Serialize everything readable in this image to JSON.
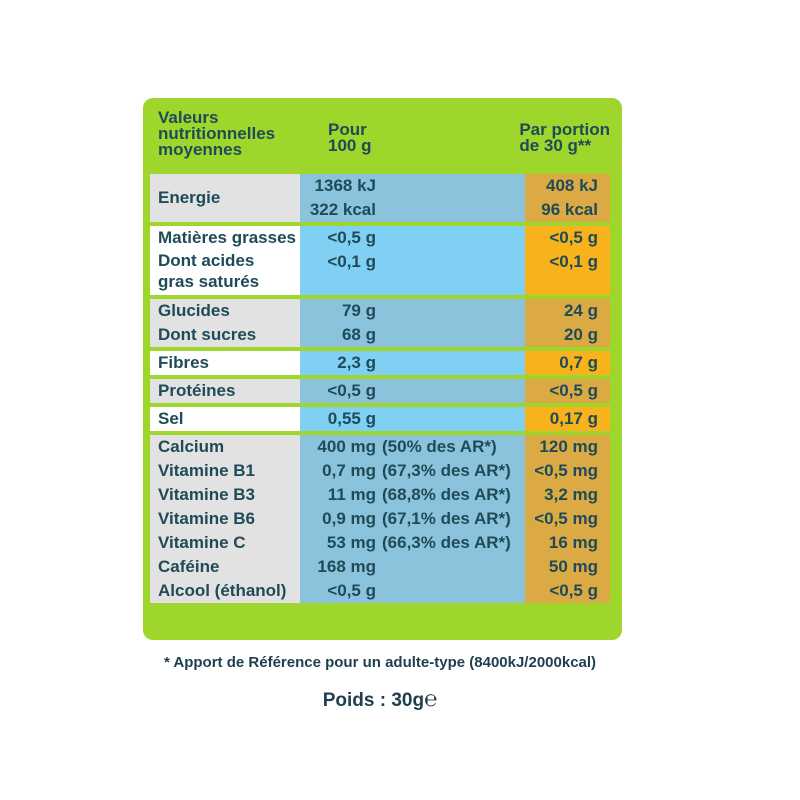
{
  "header": {
    "col_label": "Valeurs\nnutritionnelles\nmoyennes",
    "col_100g": "Pour\n100 g",
    "col_portion": "Par portion\nde 30 g**"
  },
  "groups": [
    {
      "label": "Energie",
      "rows": [
        {
          "per_100g": "1368 kJ",
          "per_portion": "408 kJ"
        },
        {
          "per_100g": "322 kcal",
          "per_portion": "96 kcal"
        }
      ]
    },
    {
      "rows": [
        {
          "label": "Matières grasses",
          "per_100g": "<0,5 g",
          "per_portion": "<0,5 g"
        },
        {
          "label": "Dont acides\ngras saturés",
          "per_100g": "<0,1 g",
          "per_portion": "<0,1 g"
        }
      ]
    },
    {
      "rows": [
        {
          "label": "Glucides",
          "per_100g": "79 g",
          "per_portion": "24 g"
        },
        {
          "label": "Dont sucres",
          "per_100g": "68 g",
          "per_portion": "20 g"
        }
      ]
    },
    {
      "rows": [
        {
          "label": "Fibres",
          "per_100g": "2,3 g",
          "per_portion": "0,7 g"
        }
      ]
    },
    {
      "rows": [
        {
          "label": "Protéines",
          "per_100g": "<0,5 g",
          "per_portion": "<0,5 g"
        }
      ]
    },
    {
      "rows": [
        {
          "label": "Sel",
          "per_100g": "0,55 g",
          "per_portion": "0,17 g"
        }
      ]
    },
    {
      "rows": [
        {
          "label": "Calcium",
          "per_100g": "400 mg",
          "ar": "(50% des AR*)",
          "per_portion": "120 mg"
        },
        {
          "label": "Vitamine B1",
          "per_100g": "0,7 mg",
          "ar": "(67,3% des AR*)",
          "per_portion": "<0,5 mg"
        },
        {
          "label": "Vitamine B3",
          "per_100g": "11 mg",
          "ar": "(68,8% des AR*)",
          "per_portion": "3,2 mg"
        },
        {
          "label": "Vitamine B6",
          "per_100g": "0,9 mg",
          "ar": "(67,1% des AR*)",
          "per_portion": "<0,5 mg"
        },
        {
          "label": "Vitamine C",
          "per_100g": "53 mg",
          "ar": "(66,3% des AR*)",
          "per_portion": "16 mg"
        },
        {
          "label": "Caféine",
          "per_100g": "168 mg",
          "per_portion": "50 mg"
        },
        {
          "label": "Alcool (éthanol)",
          "per_100g": "<0,5 g",
          "per_portion": "<0,5 g"
        }
      ]
    }
  ],
  "footnote": "* Apport de Référence pour un adulte-type (8400kJ/2000kcal)",
  "weight": "Poids : 30g",
  "estimated_sign": "℮"
}
